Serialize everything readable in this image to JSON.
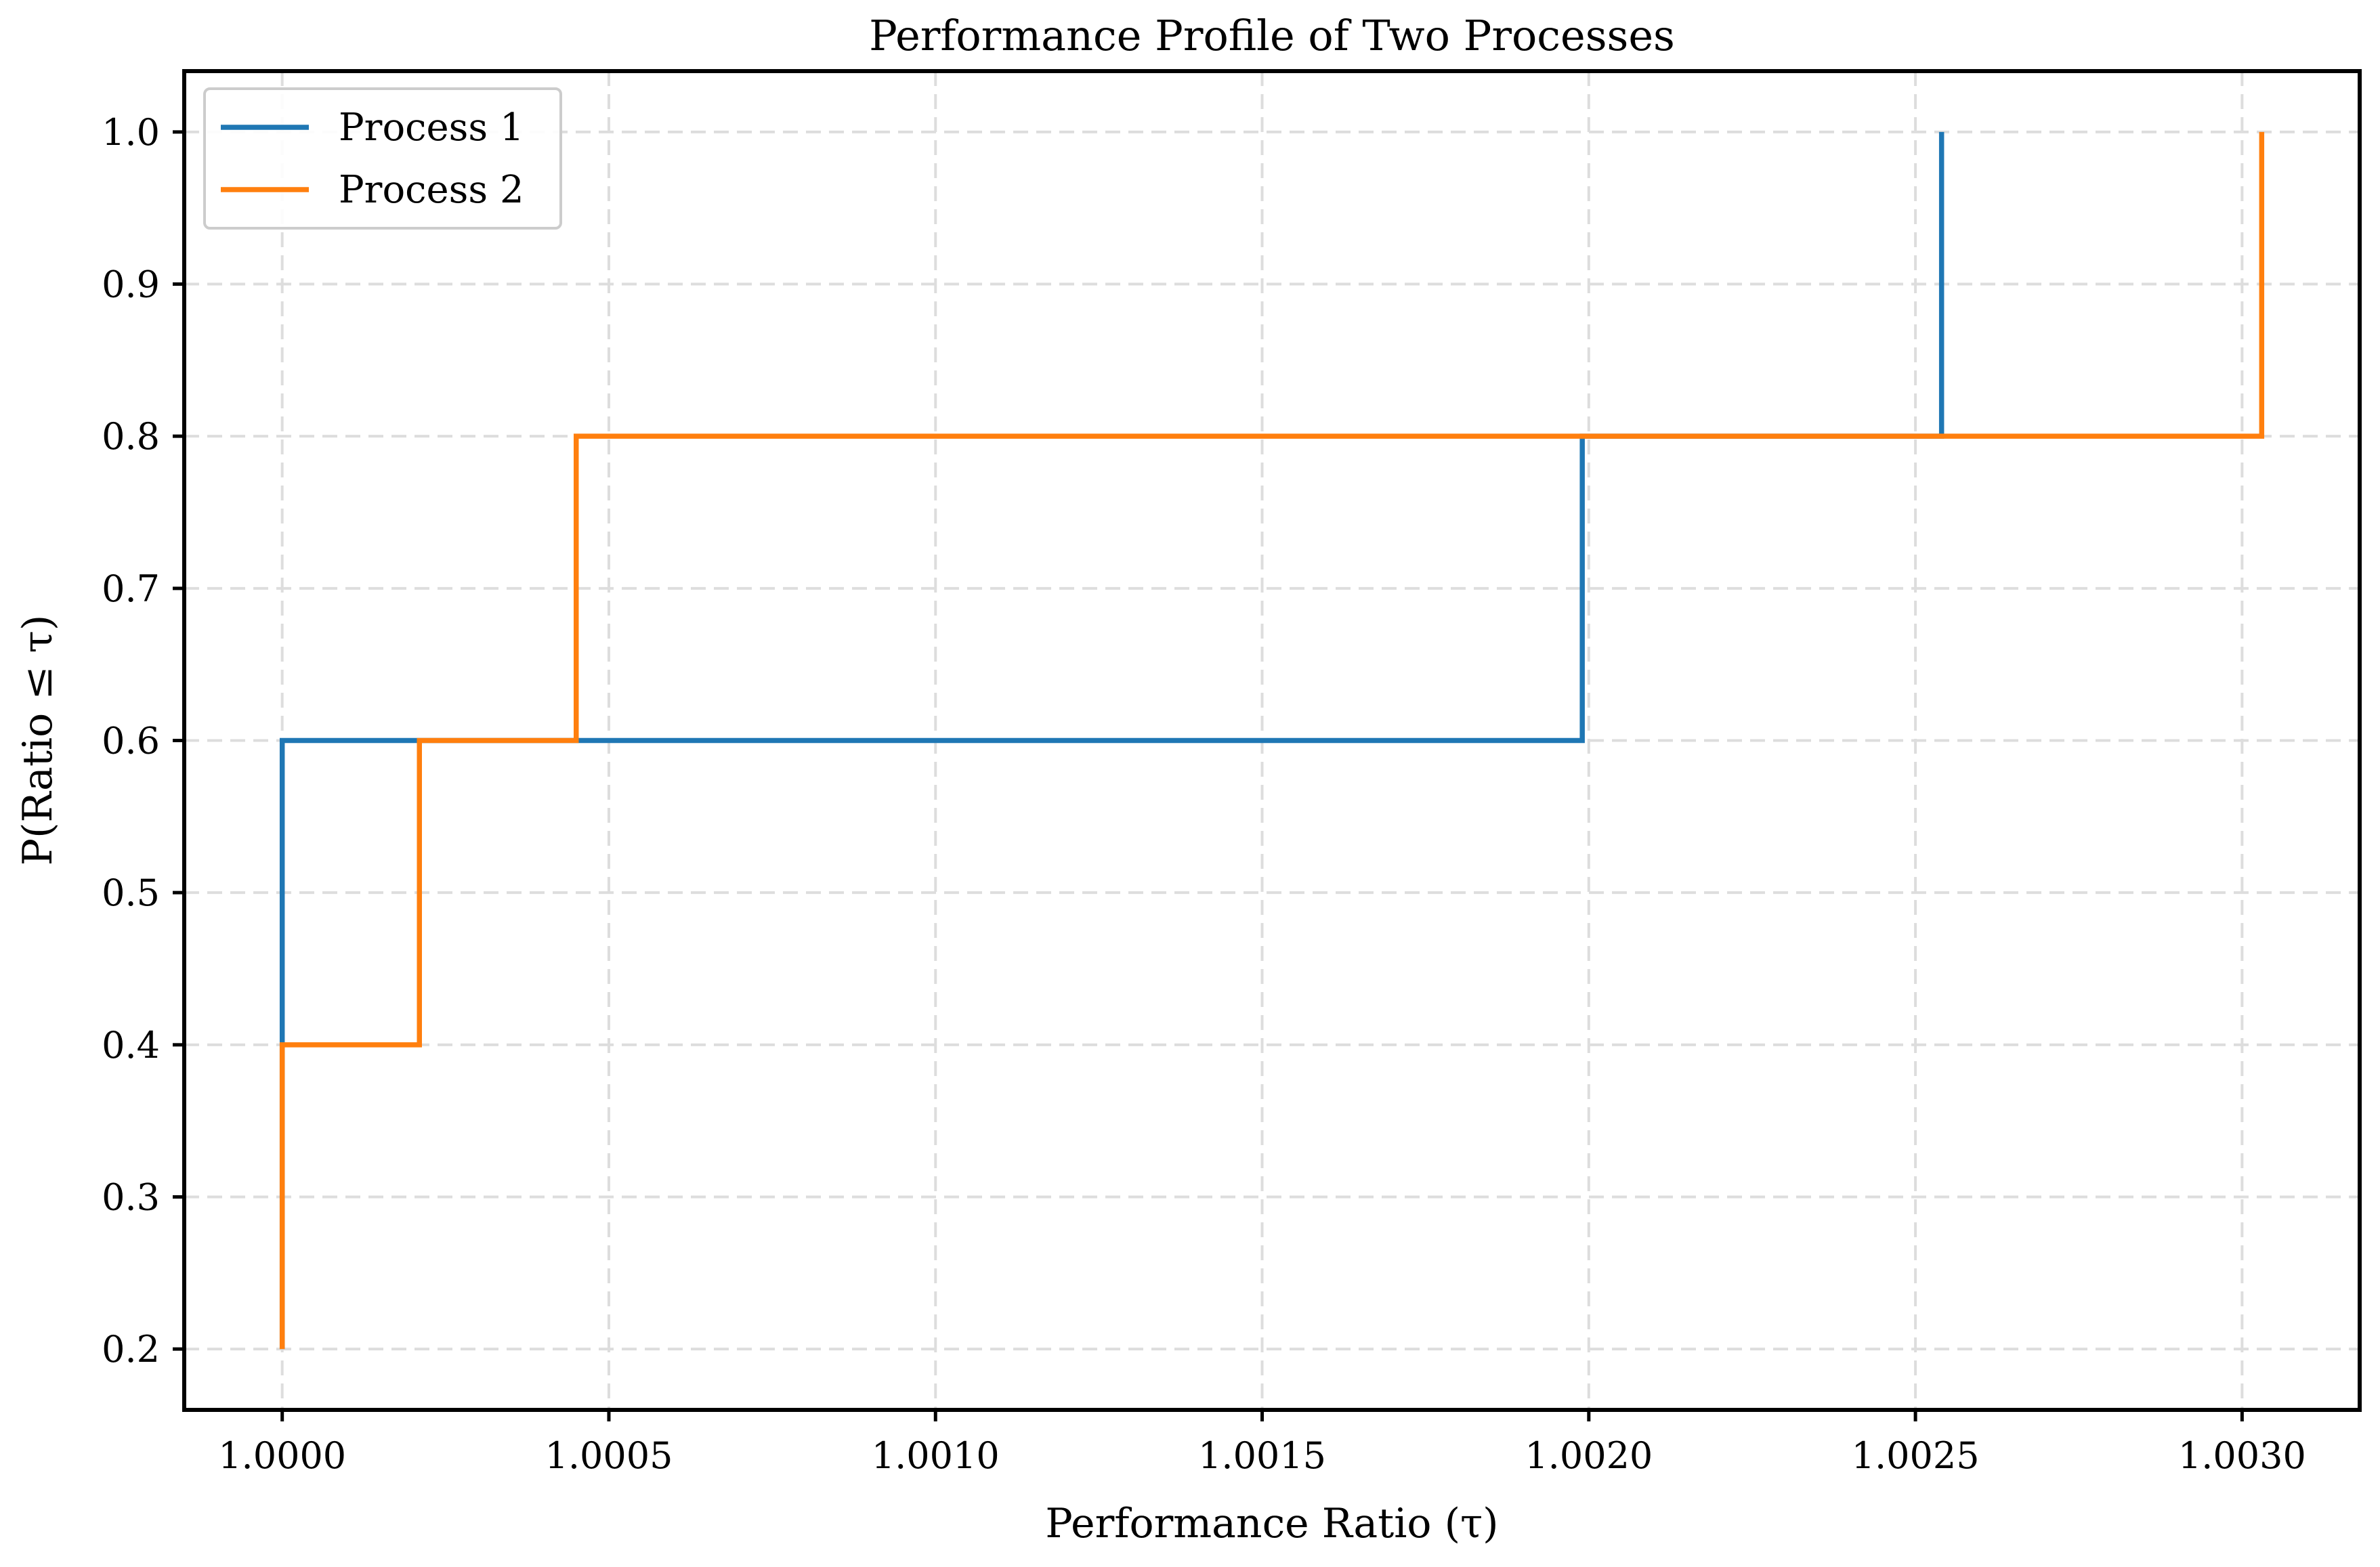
{
  "chart_data": {
    "type": "line",
    "step": "post",
    "title": "Performance Profile of Two Processes",
    "xlabel": "Performance Ratio (τ)",
    "ylabel": "P(Ratio ≤ τ)",
    "xlim": [
      0.99985,
      1.00318
    ],
    "ylim": [
      0.16,
      1.04
    ],
    "x_ticks": [
      1.0,
      1.0005,
      1.001,
      1.0015,
      1.002,
      1.0025,
      1.003
    ],
    "x_tick_labels": [
      "1.0000",
      "1.0005",
      "1.0010",
      "1.0015",
      "1.0020",
      "1.0025",
      "1.0030"
    ],
    "y_ticks": [
      0.2,
      0.3,
      0.4,
      0.5,
      0.6,
      0.7,
      0.8,
      0.9,
      1.0
    ],
    "y_tick_labels": [
      "0.2",
      "0.3",
      "0.4",
      "0.5",
      "0.6",
      "0.7",
      "0.8",
      "0.9",
      "1.0"
    ],
    "grid": true,
    "legend_position": "top-left",
    "series": [
      {
        "name": "Process 1",
        "color": "#1f77b4",
        "x": [
          1.0,
          1.0,
          1.0,
          1.00199,
          1.00254,
          1.00254
        ],
        "y": [
          0.2,
          0.4,
          0.6,
          0.8,
          0.8,
          1.0
        ]
      },
      {
        "name": "Process 2",
        "color": "#ff7f0e",
        "x": [
          1.0,
          1.0,
          1.00021,
          1.00045,
          1.00303,
          1.00303
        ],
        "y": [
          0.2,
          0.4,
          0.6,
          0.8,
          0.8,
          1.0
        ]
      }
    ]
  }
}
